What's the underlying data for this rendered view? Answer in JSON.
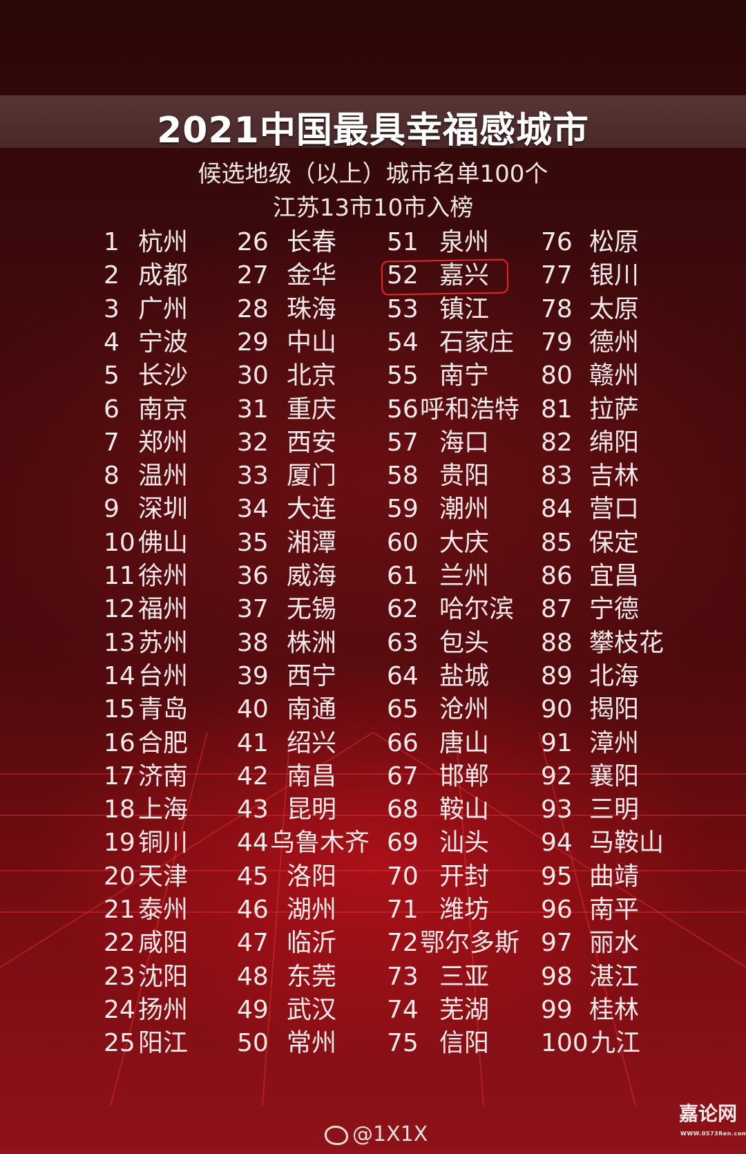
{
  "title": "2021中国最具幸福感城市",
  "subtitle": "候选地级（以上）城市名单100个",
  "subtitle2": "江苏13市10市入榜",
  "highlight": {
    "rank": "52",
    "city": "嘉兴",
    "color": "#e8262a"
  },
  "cities": [
    [
      "1",
      "杭州"
    ],
    [
      "2",
      "成都"
    ],
    [
      "3",
      "广州"
    ],
    [
      "4",
      "宁波"
    ],
    [
      "5",
      "长沙"
    ],
    [
      "6",
      "南京"
    ],
    [
      "7",
      "郑州"
    ],
    [
      "8",
      "温州"
    ],
    [
      "9",
      "深圳"
    ],
    [
      "10",
      "佛山"
    ],
    [
      "11",
      "徐州"
    ],
    [
      "12",
      "福州"
    ],
    [
      "13",
      "苏州"
    ],
    [
      "14",
      "台州"
    ],
    [
      "15",
      "青岛"
    ],
    [
      "16",
      "合肥"
    ],
    [
      "17",
      "济南"
    ],
    [
      "18",
      "上海"
    ],
    [
      "19",
      "铜川"
    ],
    [
      "20",
      "天津"
    ],
    [
      "21",
      "泰州"
    ],
    [
      "22",
      "咸阳"
    ],
    [
      "23",
      "沈阳"
    ],
    [
      "24",
      "扬州"
    ],
    [
      "25",
      "阳江"
    ],
    [
      "26",
      "长春"
    ],
    [
      "27",
      "金华"
    ],
    [
      "28",
      "珠海"
    ],
    [
      "29",
      "中山"
    ],
    [
      "30",
      "北京"
    ],
    [
      "31",
      "重庆"
    ],
    [
      "32",
      "西安"
    ],
    [
      "33",
      "厦门"
    ],
    [
      "34",
      "大连"
    ],
    [
      "35",
      "湘潭"
    ],
    [
      "36",
      "威海"
    ],
    [
      "37",
      "无锡"
    ],
    [
      "38",
      "株洲"
    ],
    [
      "39",
      "西宁"
    ],
    [
      "40",
      "南通"
    ],
    [
      "41",
      "绍兴"
    ],
    [
      "42",
      "南昌"
    ],
    [
      "43",
      "昆明"
    ],
    [
      "44",
      "乌鲁木齐"
    ],
    [
      "45",
      "洛阳"
    ],
    [
      "46",
      "湖州"
    ],
    [
      "47",
      "临沂"
    ],
    [
      "48",
      "东莞"
    ],
    [
      "49",
      "武汉"
    ],
    [
      "50",
      "常州"
    ],
    [
      "51",
      "泉州"
    ],
    [
      "52",
      "嘉兴"
    ],
    [
      "53",
      "镇江"
    ],
    [
      "54",
      "石家庄"
    ],
    [
      "55",
      "南宁"
    ],
    [
      "56",
      "呼和浩特"
    ],
    [
      "57",
      "海口"
    ],
    [
      "58",
      "贵阳"
    ],
    [
      "59",
      "潮州"
    ],
    [
      "60",
      "大庆"
    ],
    [
      "61",
      "兰州"
    ],
    [
      "62",
      "哈尔滨"
    ],
    [
      "63",
      "包头"
    ],
    [
      "64",
      "盐城"
    ],
    [
      "65",
      "沧州"
    ],
    [
      "66",
      "唐山"
    ],
    [
      "67",
      "邯郸"
    ],
    [
      "68",
      "鞍山"
    ],
    [
      "69",
      "汕头"
    ],
    [
      "70",
      "开封"
    ],
    [
      "71",
      "潍坊"
    ],
    [
      "72",
      "鄂尔多斯"
    ],
    [
      "73",
      "三亚"
    ],
    [
      "74",
      "芜湖"
    ],
    [
      "75",
      "信阳"
    ],
    [
      "76",
      "松原"
    ],
    [
      "77",
      "银川"
    ],
    [
      "78",
      "太原"
    ],
    [
      "79",
      "德州"
    ],
    [
      "80",
      "赣州"
    ],
    [
      "81",
      "拉萨"
    ],
    [
      "82",
      "绵阳"
    ],
    [
      "83",
      "吉林"
    ],
    [
      "84",
      "营口"
    ],
    [
      "85",
      "保定"
    ],
    [
      "86",
      "宜昌"
    ],
    [
      "87",
      "宁德"
    ],
    [
      "88",
      "攀枝花"
    ],
    [
      "89",
      "北海"
    ],
    [
      "90",
      "揭阳"
    ],
    [
      "91",
      "漳州"
    ],
    [
      "92",
      "襄阳"
    ],
    [
      "93",
      "三明"
    ],
    [
      "94",
      "马鞍山"
    ],
    [
      "95",
      "曲靖"
    ],
    [
      "96",
      "南平"
    ],
    [
      "97",
      "丽水"
    ],
    [
      "98",
      "湛江"
    ],
    [
      "99",
      "桂林"
    ],
    [
      "100",
      "九江"
    ]
  ],
  "watermark": {
    "weibo_handle": "@1X1X",
    "weibo_icon": "weibo-icon",
    "site_logo": "嘉论网",
    "site_url": "WWW.0573Ren.com"
  }
}
